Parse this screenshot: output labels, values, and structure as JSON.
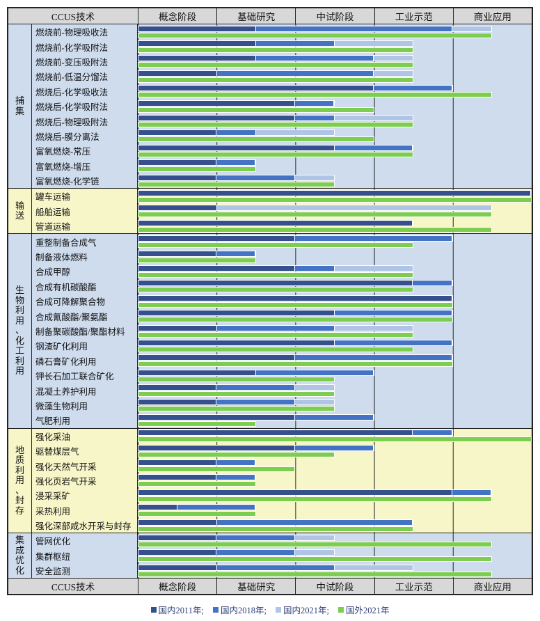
{
  "header": {
    "tech_label": "CCUS技术",
    "stages": [
      "概念阶段",
      "基础研究",
      "中试阶段",
      "工业示范",
      "商业应用"
    ]
  },
  "legend": {
    "items": [
      {
        "label": "国内2011年;",
        "color": "#35508C",
        "series": "cn2011"
      },
      {
        "label": "国内2018年;",
        "color": "#4472C4",
        "series": "cn2018"
      },
      {
        "label": "国内2021年;",
        "color": "#B0C4E6",
        "series": "cn2021"
      },
      {
        "label": "国外2021年",
        "color": "#7DCD50",
        "series": "intl2021"
      }
    ]
  },
  "colors": {
    "cn2011": "#35508C",
    "cn2018": "#4472C4",
    "cn2021": "#B0C4E6",
    "intl2021": "#7DCD50",
    "section_blue": "#CEDCEE",
    "section_yellow": "#F6F6C8",
    "header_bg": "#D8D8D8",
    "gridline": "#222222"
  },
  "chart_data": {
    "type": "bar",
    "orientation": "horizontal",
    "x_axis_stages": [
      "概念阶段",
      "基础研究",
      "中试阶段",
      "工业示范",
      "商业应用"
    ],
    "x_range": [
      0,
      5
    ],
    "units": "development stage (0-5, each stage = 1)",
    "series_labels": {
      "cn2011": "国内2011年",
      "cn2018": "国内2018年",
      "cn2021": "国内2021年",
      "intl2021": "国外2021年"
    },
    "sections": [
      {
        "name": "捕集",
        "theme": "blue",
        "rows": [
          {
            "label": "燃烧前-物理吸收法",
            "cn2011": 1.5,
            "cn2018": 4.0,
            "cn2021": 4.5,
            "intl2021": 4.5
          },
          {
            "label": "燃烧前-化学吸附法",
            "cn2011": 1.5,
            "cn2018": 2.5,
            "cn2021": 3.5,
            "intl2021": 3.5
          },
          {
            "label": "燃烧前-变压吸附法",
            "cn2011": 1.5,
            "cn2018": 3.0,
            "cn2021": 3.5,
            "intl2021": 3.5
          },
          {
            "label": "燃烧前-低温分馏法",
            "cn2011": 1.0,
            "cn2018": 3.0,
            "cn2021": 3.5,
            "intl2021": 3.5
          },
          {
            "label": "燃烧后-化学吸收法",
            "cn2011": 3.0,
            "cn2018": 4.0,
            "cn2021": 4.0,
            "intl2021": 4.5
          },
          {
            "label": "燃烧后-化学吸附法",
            "cn2011": 2.0,
            "cn2018": 2.5,
            "cn2021": 2.5,
            "intl2021": 3.0
          },
          {
            "label": "燃烧后-物理吸附法",
            "cn2011": 2.0,
            "cn2018": 2.5,
            "cn2021": 3.5,
            "intl2021": 3.5
          },
          {
            "label": "燃烧后-膜分离法",
            "cn2011": 1.0,
            "cn2018": 1.5,
            "cn2021": 2.5,
            "intl2021": 3.0
          },
          {
            "label": "富氧燃烧-常压",
            "cn2011": 2.5,
            "cn2018": 3.5,
            "cn2021": 3.5,
            "intl2021": 3.5
          },
          {
            "label": "富氧燃烧-增压",
            "cn2011": 1.0,
            "cn2018": 1.5,
            "cn2021": 1.5,
            "intl2021": 1.5
          },
          {
            "label": "富氧燃烧-化学链",
            "cn2011": 1.0,
            "cn2018": 2.0,
            "cn2021": 2.5,
            "intl2021": 2.5
          }
        ]
      },
      {
        "name": "输送",
        "theme": "yellow",
        "rows": [
          {
            "label": "罐车运输",
            "cn2011": 5.0,
            "cn2018": 5.0,
            "cn2021": 5.0,
            "intl2021": 5.0
          },
          {
            "label": "船舶运输",
            "cn2011": 1.0,
            "cn2018": 1.0,
            "cn2021": 4.5,
            "intl2021": 4.5
          },
          {
            "label": "管道运输",
            "cn2011": 3.5,
            "cn2018": 3.5,
            "cn2021": 3.5,
            "intl2021": 4.5
          }
        ]
      },
      {
        "name": "生物利用、化工利用",
        "theme": "blue",
        "rows": [
          {
            "label": "重整制备合成气",
            "cn2011": 2.0,
            "cn2018": 4.0,
            "cn2021": 4.0,
            "intl2021": 3.5
          },
          {
            "label": "制备液体燃料",
            "cn2011": 1.0,
            "cn2018": 1.5,
            "cn2021": 1.5,
            "intl2021": 1.5
          },
          {
            "label": "合成甲醇",
            "cn2011": 2.0,
            "cn2018": 2.5,
            "cn2021": 3.5,
            "intl2021": 3.5
          },
          {
            "label": "合成有机碳酸酯",
            "cn2011": 3.5,
            "cn2018": 4.0,
            "cn2021": 4.0,
            "intl2021": 3.5
          },
          {
            "label": "合成可降解聚合物",
            "cn2011": 4.0,
            "cn2018": 4.0,
            "cn2021": 4.0,
            "intl2021": 4.0
          },
          {
            "label": "合成氰酸酯/聚氨酯",
            "cn2011": 2.5,
            "cn2018": 4.0,
            "cn2021": 4.0,
            "intl2021": 4.0
          },
          {
            "label": "制备聚碳酸酯/聚酯材料",
            "cn2011": 1.0,
            "cn2018": 2.5,
            "cn2021": 3.5,
            "intl2021": 3.5
          },
          {
            "label": "钢渣矿化利用",
            "cn2011": 2.5,
            "cn2018": 4.0,
            "cn2021": 4.0,
            "intl2021": 3.5
          },
          {
            "label": "磷石膏矿化利用",
            "cn2011": 2.0,
            "cn2018": 4.0,
            "cn2021": 4.0,
            "intl2021": 4.0
          },
          {
            "label": "钾长石加工联合矿化",
            "cn2011": 1.5,
            "cn2018": 3.0,
            "cn2021": 3.0,
            "intl2021": 2.5
          },
          {
            "label": "混凝土养护利用",
            "cn2011": 1.0,
            "cn2018": 2.0,
            "cn2021": 2.5,
            "intl2021": 2.5
          },
          {
            "label": "微藻生物利用",
            "cn2011": 1.0,
            "cn2018": 2.0,
            "cn2021": 2.5,
            "intl2021": 2.5
          },
          {
            "label": "气肥利用",
            "cn2011": 2.0,
            "cn2018": 3.0,
            "cn2021": 3.0,
            "intl2021": 1.5
          }
        ]
      },
      {
        "name": "地质利用、封存",
        "theme": "yellow",
        "rows": [
          {
            "label": "强化采油",
            "cn2011": 3.5,
            "cn2018": 4.0,
            "cn2021": 4.0,
            "intl2021": 5.0
          },
          {
            "label": "驱替煤层气",
            "cn2011": 2.0,
            "cn2018": 3.0,
            "cn2021": 3.0,
            "intl2021": 2.5
          },
          {
            "label": "强化天然气开采",
            "cn2011": 1.0,
            "cn2018": 1.5,
            "cn2021": 1.5,
            "intl2021": 2.0
          },
          {
            "label": "强化页岩气开采",
            "cn2011": 1.0,
            "cn2018": 1.5,
            "cn2021": 1.5,
            "intl2021": 1.5
          },
          {
            "label": "浸采采矿",
            "cn2011": 4.0,
            "cn2018": 4.5,
            "cn2021": 4.5,
            "intl2021": 4.5
          },
          {
            "label": "采热利用",
            "cn2011": 0.5,
            "cn2018": 1.5,
            "cn2021": 1.5,
            "intl2021": 1.5
          },
          {
            "label": "强化深部咸水开采与封存",
            "cn2011": 1.0,
            "cn2018": 3.5,
            "cn2021": 3.5,
            "intl2021": 3.5
          }
        ]
      },
      {
        "name": "集成优化",
        "theme": "blue",
        "rows": [
          {
            "label": "管网优化",
            "cn2011": 1.0,
            "cn2018": 2.0,
            "cn2021": 2.5,
            "intl2021": 4.5
          },
          {
            "label": "集群枢纽",
            "cn2011": 1.0,
            "cn2018": 2.0,
            "cn2021": 2.5,
            "intl2021": 4.5
          },
          {
            "label": "安全监测",
            "cn2011": 1.0,
            "cn2018": 2.5,
            "cn2021": 3.5,
            "intl2021": 4.5
          }
        ]
      }
    ]
  }
}
